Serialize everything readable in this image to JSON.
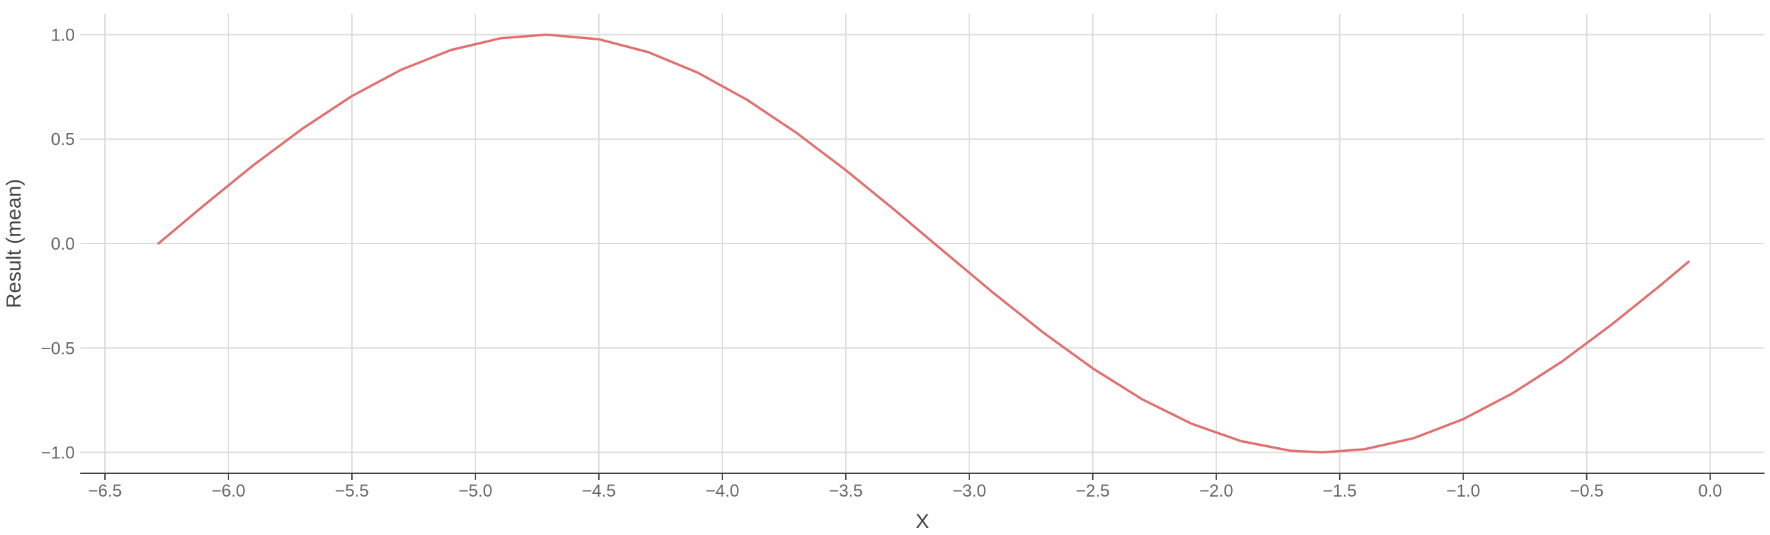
{
  "chart_data": {
    "type": "line",
    "title": "",
    "xlabel": "X",
    "ylabel": "Result (mean)",
    "xlim": [
      -6.6,
      0.22
    ],
    "ylim": [
      -1.1,
      1.1
    ],
    "x_ticks": [
      -6.5,
      -6.0,
      -5.5,
      -5.0,
      -4.5,
      -4.0,
      -3.5,
      -3.0,
      -2.5,
      -2.0,
      -1.5,
      -1.0,
      -0.5,
      0.0
    ],
    "x_tick_labels": [
      "−6.5",
      "−6.0",
      "−5.5",
      "−5.0",
      "−4.5",
      "−4.0",
      "−3.5",
      "−3.0",
      "−2.5",
      "−2.0",
      "−1.5",
      "−1.0",
      "−0.5",
      "0.0"
    ],
    "y_ticks": [
      1.0,
      0.5,
      0.0,
      -0.5,
      -1.0
    ],
    "y_tick_labels": [
      "1.0",
      "0.5",
      "0.0",
      "−0.5",
      "−1.0"
    ],
    "grid": true,
    "series": [
      {
        "color": "#e07070",
        "x": [
          -6.2832,
          -6.1,
          -5.9,
          -5.7,
          -5.5,
          -5.3,
          -5.1,
          -4.9,
          -4.7124,
          -4.5,
          -4.3,
          -4.1,
          -3.9,
          -3.7,
          -3.5,
          -3.3,
          -3.1416,
          -2.9,
          -2.7,
          -2.5,
          -2.3,
          -2.1,
          -1.9,
          -1.7,
          -1.5708,
          -1.4,
          -1.2,
          -1.0,
          -0.8,
          -0.6,
          -0.4,
          -0.2,
          -0.0873
        ],
        "y": [
          0.0,
          0.182,
          0.374,
          0.55,
          0.706,
          0.832,
          0.926,
          0.982,
          1.0,
          0.978,
          0.916,
          0.818,
          0.688,
          0.53,
          0.351,
          0.158,
          0.0,
          -0.239,
          -0.427,
          -0.598,
          -0.746,
          -0.863,
          -0.946,
          -0.992,
          -1.0,
          -0.985,
          -0.932,
          -0.841,
          -0.717,
          -0.565,
          -0.389,
          -0.199,
          -0.087
        ]
      }
    ]
  }
}
